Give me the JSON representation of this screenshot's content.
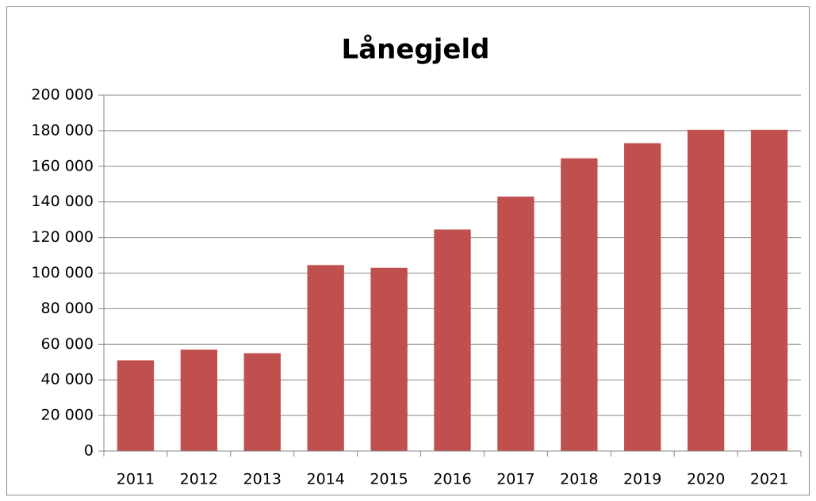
{
  "chart_data": {
    "type": "bar",
    "title": "Lånegjeld",
    "categories": [
      "2011",
      "2012",
      "2013",
      "2014",
      "2015",
      "2016",
      "2017",
      "2018",
      "2019",
      "2020",
      "2021"
    ],
    "values": [
      51000,
      57000,
      55000,
      104500,
      103000,
      124500,
      143000,
      164500,
      173000,
      180500,
      180500
    ],
    "color": "#c0504d",
    "ylim": [
      0,
      200000
    ],
    "yticks": [
      0,
      {
        "value": 20000,
        "label": "20 000"
      },
      {
        "value": 40000,
        "label": "40 000"
      },
      {
        "value": 60000,
        "label": "60 000"
      },
      {
        "value": 80000,
        "label": "80 000"
      },
      {
        "value": 100000,
        "label": "100 000"
      },
      {
        "value": 120000,
        "label": "120 000"
      },
      {
        "value": 140000,
        "label": "140 000"
      },
      {
        "value": 160000,
        "label": "160 000"
      },
      {
        "value": 180000,
        "label": "180 000"
      },
      {
        "value": 200000,
        "label": "200 000"
      }
    ],
    "grid": true
  }
}
